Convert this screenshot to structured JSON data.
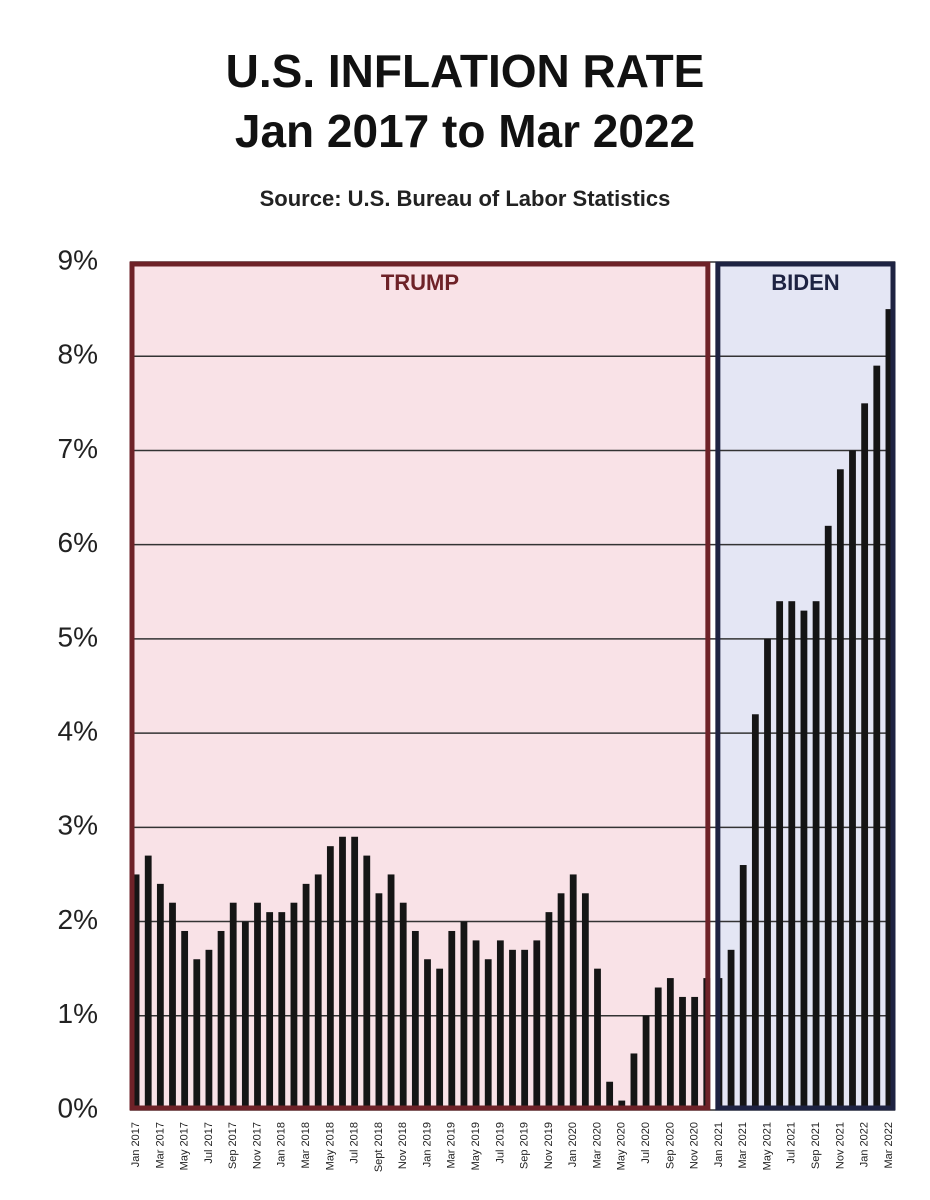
{
  "chart_data": {
    "type": "bar",
    "title": "U.S. INFLATION RATE",
    "subtitle": "Jan 2017 to Mar 2022",
    "source": "Source: U.S. Bureau of Labor Statistics",
    "categories": [
      "Jan 2017",
      null,
      "Mar 2017",
      null,
      "May 2017",
      null,
      "Jul 2017",
      null,
      "Sep 2017",
      null,
      "Nov 2017",
      null,
      "Jan 2018",
      null,
      "Mar 2018",
      null,
      "May 2018",
      null,
      "Jul 2018",
      null,
      "Sept 2018",
      null,
      "Nov 2018",
      null,
      "Jan 2019",
      null,
      "Mar 2019",
      null,
      "May 2019",
      null,
      "Jul 2019",
      null,
      "Sep 2019",
      null,
      "Nov 2019",
      null,
      "Jan 2020",
      null,
      "Mar 2020",
      null,
      "May 2020",
      null,
      "Jul 2020",
      null,
      "Sep 2020",
      null,
      "Nov 2020",
      null,
      "Jan 2021",
      null,
      "Mar 2021",
      null,
      "May 2021",
      null,
      "Jul 2021",
      null,
      "Sep 2021",
      null,
      "Nov 2021",
      null,
      "Jan 2022",
      null,
      "Mar 2022"
    ],
    "values": [
      2.5,
      2.7,
      2.4,
      2.2,
      1.9,
      1.6,
      1.7,
      1.9,
      2.2,
      2.0,
      2.2,
      2.1,
      2.1,
      2.2,
      2.4,
      2.5,
      2.8,
      2.9,
      2.9,
      2.7,
      2.3,
      2.5,
      2.2,
      1.9,
      1.6,
      1.5,
      1.9,
      2.0,
      1.8,
      1.6,
      1.8,
      1.7,
      1.7,
      1.8,
      2.1,
      2.3,
      2.5,
      2.3,
      1.5,
      0.3,
      0.1,
      0.6,
      1.0,
      1.3,
      1.4,
      1.2,
      1.2,
      1.4,
      1.4,
      1.7,
      2.6,
      4.2,
      5.0,
      5.4,
      5.4,
      5.3,
      5.4,
      6.2,
      6.8,
      7.0,
      7.5,
      7.9,
      8.5
    ],
    "color": "#151515",
    "ylim": [
      0,
      9
    ],
    "yticks": [
      {
        "value": 0,
        "label": "0%"
      },
      {
        "value": 1,
        "label": "1%"
      },
      {
        "value": 2,
        "label": "2%"
      },
      {
        "value": 3,
        "label": "3%"
      },
      {
        "value": 4,
        "label": "4%"
      },
      {
        "value": 5,
        "label": "5%"
      },
      {
        "value": 6,
        "label": "6%"
      },
      {
        "value": 7,
        "label": "7%"
      },
      {
        "value": 8,
        "label": "8%"
      },
      {
        "value": 9,
        "label": "9%"
      }
    ],
    "grid": true,
    "regions": [
      {
        "label": "TRUMP",
        "months": 48,
        "fill": "#f9e2e7",
        "color": "#6e2228"
      },
      {
        "label": "BIDEN",
        "months": 15,
        "fill": "#e4e6f4",
        "color": "#1e2342"
      }
    ]
  }
}
